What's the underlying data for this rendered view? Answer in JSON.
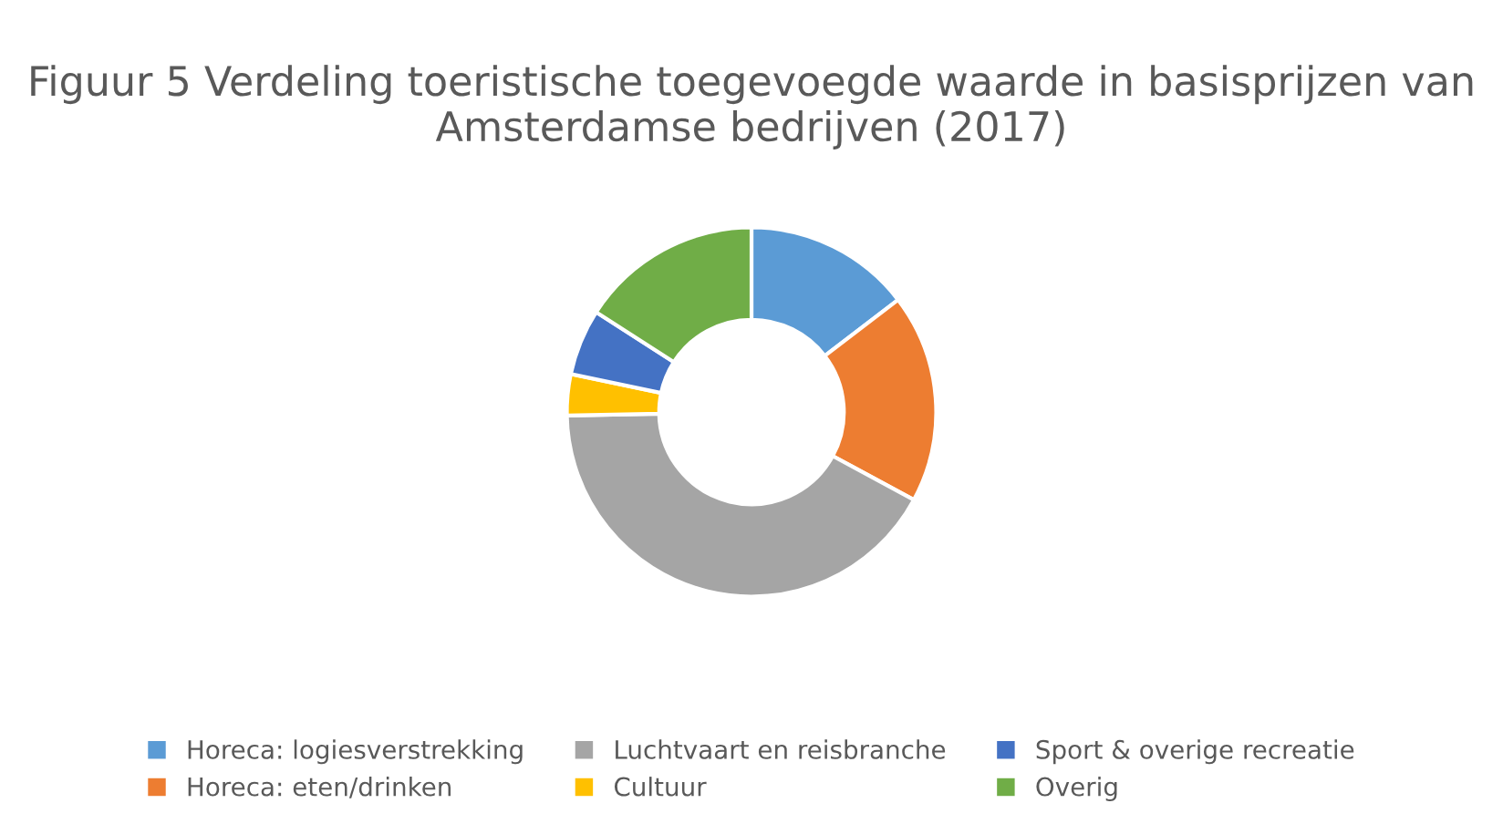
{
  "chart_data": {
    "type": "donut",
    "title": "Figuur 5 Verdeling toeristische toegevoegde waarde in basisprijzen van Amsterdamse bedrijven (2017)",
    "categories": [
      "Horeca: logiesverstrekking",
      "Horeca: eten/drinken",
      "Luchtvaart en reisbranche",
      "Cultuur",
      "Sport & overige recreatie",
      "Overig"
    ],
    "values": [
      14.6,
      18.3,
      41.8,
      3.6,
      5.8,
      15.9
    ],
    "colors": [
      "#5b9bd5",
      "#ed7d31",
      "#a5a5a5",
      "#ffc000",
      "#4472c4",
      "#70ad47"
    ],
    "legend": "bottom"
  }
}
